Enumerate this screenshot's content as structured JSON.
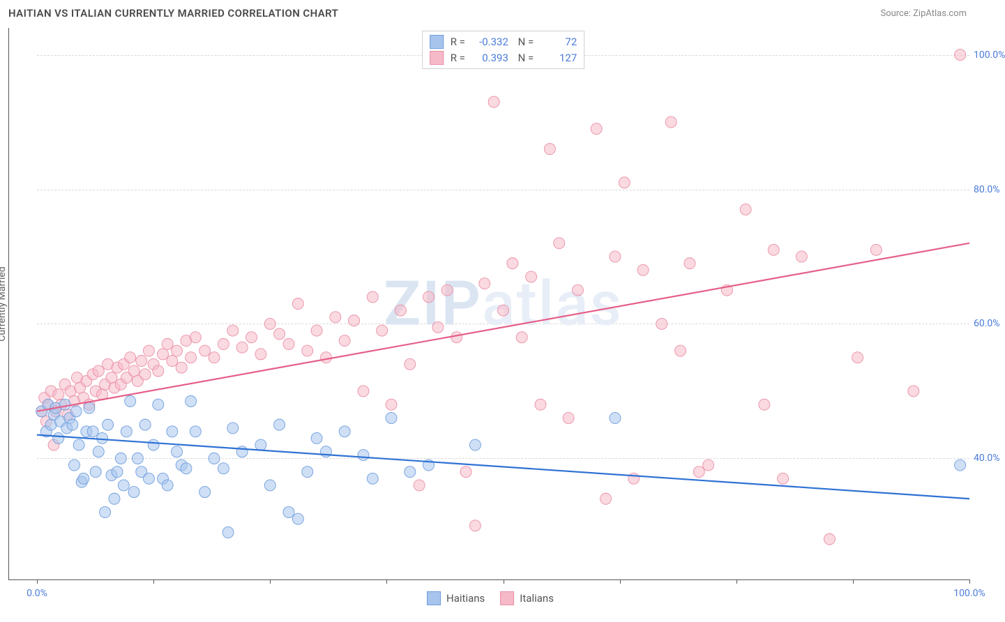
{
  "header": {
    "title": "HAITIAN VS ITALIAN CURRENTLY MARRIED CORRELATION CHART",
    "source": "Source: ZipAtlas.com"
  },
  "watermark": {
    "left": "ZIP",
    "right": "atlas"
  },
  "chart": {
    "type": "scatter",
    "ylabel": "Currently Married",
    "xlim": [
      0,
      100
    ],
    "ylim": [
      22,
      104
    ],
    "xtick_positions": [
      0,
      12.5,
      25,
      37.5,
      50,
      62.5,
      75,
      87.5,
      100
    ],
    "xtick_labels": {
      "0": "0.0%",
      "100": "100.0%"
    },
    "yticks": [
      40,
      60,
      80,
      100
    ],
    "ytick_labels": [
      "40.0%",
      "60.0%",
      "80.0%",
      "100.0%"
    ],
    "grid_color": "#d8d8d8",
    "background_color": "#ffffff",
    "marker_radius": 8,
    "marker_opacity": 0.55,
    "series": [
      {
        "name": "Haitians",
        "color_fill": "#a7c4ed",
        "color_stroke": "#6f9ede",
        "trend_color": "#2f72d4",
        "trend": {
          "x1": 0,
          "y1": 43.5,
          "x2": 100,
          "y2": 34.0
        },
        "R": "-0.332",
        "N": "72",
        "points": [
          [
            0.5,
            47
          ],
          [
            1,
            44
          ],
          [
            1.2,
            48
          ],
          [
            1.5,
            45
          ],
          [
            1.8,
            46.5
          ],
          [
            2,
            47.5
          ],
          [
            2.3,
            43
          ],
          [
            2.5,
            45.5
          ],
          [
            3,
            48
          ],
          [
            3.2,
            44.5
          ],
          [
            3.5,
            46
          ],
          [
            3.8,
            45
          ],
          [
            4,
            39
          ],
          [
            4.2,
            47
          ],
          [
            4.5,
            42
          ],
          [
            4.8,
            36.5
          ],
          [
            5,
            37
          ],
          [
            5.3,
            44
          ],
          [
            5.6,
            47.5
          ],
          [
            6,
            44
          ],
          [
            6.3,
            38
          ],
          [
            6.6,
            41
          ],
          [
            7,
            43
          ],
          [
            7.3,
            32
          ],
          [
            7.6,
            45
          ],
          [
            8,
            37.5
          ],
          [
            8.3,
            34
          ],
          [
            8.6,
            38
          ],
          [
            9,
            40
          ],
          [
            9.3,
            36
          ],
          [
            9.6,
            44
          ],
          [
            10,
            48.5
          ],
          [
            10.4,
            35
          ],
          [
            10.8,
            40
          ],
          [
            11.2,
            38
          ],
          [
            11.6,
            45
          ],
          [
            12,
            37
          ],
          [
            12.5,
            42
          ],
          [
            13,
            48
          ],
          [
            13.5,
            37
          ],
          [
            14,
            36
          ],
          [
            14.5,
            44
          ],
          [
            15,
            41
          ],
          [
            15.5,
            39
          ],
          [
            16,
            38.5
          ],
          [
            16.5,
            48.5
          ],
          [
            17,
            44
          ],
          [
            18,
            35
          ],
          [
            19,
            40
          ],
          [
            20,
            38.5
          ],
          [
            20.5,
            29
          ],
          [
            21,
            44.5
          ],
          [
            22,
            41
          ],
          [
            24,
            42
          ],
          [
            25,
            36
          ],
          [
            26,
            45
          ],
          [
            27,
            32
          ],
          [
            28,
            31
          ],
          [
            29,
            38
          ],
          [
            30,
            43
          ],
          [
            31,
            41
          ],
          [
            33,
            44
          ],
          [
            35,
            40.5
          ],
          [
            36,
            37
          ],
          [
            38,
            46
          ],
          [
            40,
            38
          ],
          [
            42,
            39
          ],
          [
            47,
            42
          ],
          [
            62,
            46
          ],
          [
            99,
            39
          ]
        ]
      },
      {
        "name": "Italians",
        "color_fill": "#f5b9c8",
        "color_stroke": "#ea8fa6",
        "trend_color": "#e65f88",
        "trend": {
          "x1": 0,
          "y1": 47.0,
          "x2": 100,
          "y2": 72.0
        },
        "R": "0.393",
        "N": "127",
        "points": [
          [
            0.5,
            47
          ],
          [
            0.8,
            49
          ],
          [
            1,
            45.5
          ],
          [
            1.2,
            48
          ],
          [
            1.5,
            50
          ],
          [
            1.8,
            42
          ],
          [
            2,
            47
          ],
          [
            2.3,
            49.5
          ],
          [
            2.6,
            48
          ],
          [
            3,
            51
          ],
          [
            3.3,
            46.5
          ],
          [
            3.6,
            50
          ],
          [
            4,
            48.5
          ],
          [
            4.3,
            52
          ],
          [
            4.6,
            50.5
          ],
          [
            5,
            49
          ],
          [
            5.3,
            51.5
          ],
          [
            5.6,
            48
          ],
          [
            6,
            52.5
          ],
          [
            6.3,
            50
          ],
          [
            6.6,
            53
          ],
          [
            7,
            49.5
          ],
          [
            7.3,
            51
          ],
          [
            7.6,
            54
          ],
          [
            8,
            52
          ],
          [
            8.3,
            50.5
          ],
          [
            8.6,
            53.5
          ],
          [
            9,
            51
          ],
          [
            9.3,
            54
          ],
          [
            9.6,
            52
          ],
          [
            10,
            55
          ],
          [
            10.4,
            53
          ],
          [
            10.8,
            51.5
          ],
          [
            11.2,
            54.5
          ],
          [
            11.6,
            52.5
          ],
          [
            12,
            56
          ],
          [
            12.5,
            54
          ],
          [
            13,
            53
          ],
          [
            13.5,
            55.5
          ],
          [
            14,
            57
          ],
          [
            14.5,
            54.5
          ],
          [
            15,
            56
          ],
          [
            15.5,
            53.5
          ],
          [
            16,
            57.5
          ],
          [
            16.5,
            55
          ],
          [
            17,
            58
          ],
          [
            18,
            56
          ],
          [
            19,
            55
          ],
          [
            20,
            57
          ],
          [
            21,
            59
          ],
          [
            22,
            56.5
          ],
          [
            23,
            58
          ],
          [
            24,
            55.5
          ],
          [
            25,
            60
          ],
          [
            26,
            58.5
          ],
          [
            27,
            57
          ],
          [
            28,
            63
          ],
          [
            29,
            56
          ],
          [
            30,
            59
          ],
          [
            31,
            55
          ],
          [
            32,
            61
          ],
          [
            33,
            57.5
          ],
          [
            34,
            60.5
          ],
          [
            35,
            50
          ],
          [
            36,
            64
          ],
          [
            37,
            59
          ],
          [
            38,
            48
          ],
          [
            39,
            62
          ],
          [
            40,
            54
          ],
          [
            41,
            36
          ],
          [
            42,
            64
          ],
          [
            43,
            59.5
          ],
          [
            44,
            65
          ],
          [
            45,
            58
          ],
          [
            46,
            38
          ],
          [
            47,
            30
          ],
          [
            48,
            66
          ],
          [
            49,
            93
          ],
          [
            50,
            62
          ],
          [
            51,
            69
          ],
          [
            52,
            58
          ],
          [
            53,
            67
          ],
          [
            54,
            48
          ],
          [
            55,
            86
          ],
          [
            56,
            72
          ],
          [
            57,
            46
          ],
          [
            58,
            65
          ],
          [
            60,
            89
          ],
          [
            61,
            34
          ],
          [
            62,
            70
          ],
          [
            63,
            81
          ],
          [
            64,
            37
          ],
          [
            65,
            68
          ],
          [
            67,
            60
          ],
          [
            68,
            90
          ],
          [
            69,
            56
          ],
          [
            70,
            69
          ],
          [
            71,
            38
          ],
          [
            72,
            39
          ],
          [
            74,
            65
          ],
          [
            76,
            77
          ],
          [
            78,
            48
          ],
          [
            79,
            71
          ],
          [
            80,
            37
          ],
          [
            82,
            70
          ],
          [
            85,
            28
          ],
          [
            88,
            55
          ],
          [
            90,
            71
          ],
          [
            94,
            50
          ],
          [
            99,
            100
          ]
        ]
      }
    ],
    "legend_bottom": {
      "items": [
        {
          "label": "Haitians",
          "swatch": "#a7c4ed",
          "border": "#6f9ede"
        },
        {
          "label": "Italians",
          "swatch": "#f5b9c8",
          "border": "#ea8fa6"
        }
      ]
    }
  }
}
